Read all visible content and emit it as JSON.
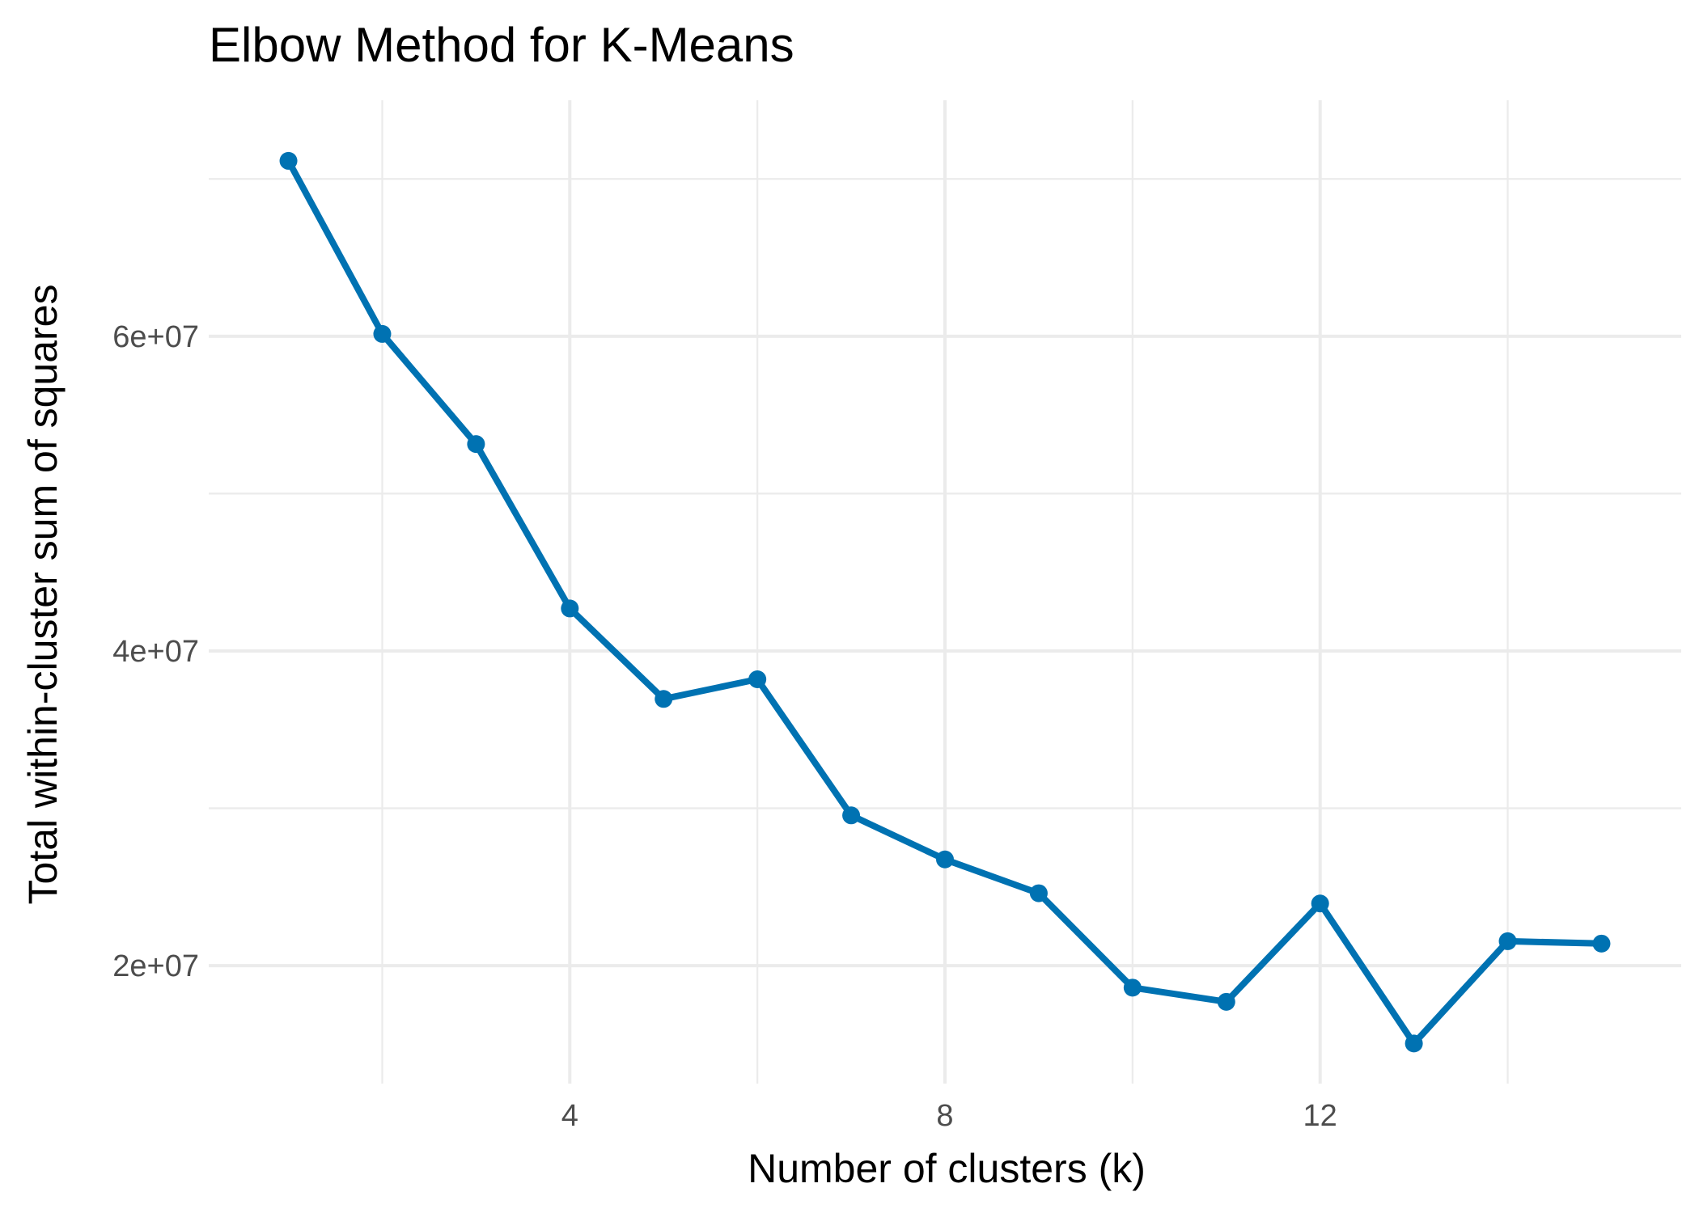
{
  "chart_data": {
    "type": "line",
    "title": "Elbow Method for K-Means",
    "xlabel": "Number of clusters (k)",
    "ylabel": "Total within-cluster sum of squares",
    "x": [
      1,
      2,
      3,
      4,
      5,
      6,
      7,
      8,
      9,
      10,
      11,
      12,
      13,
      14,
      15
    ],
    "series": [
      {
        "name": "",
        "values": [
          71150000,
          60150000,
          53150000,
          42700000,
          36950000,
          38200000,
          29550000,
          26750000,
          24600000,
          18600000,
          17700000,
          23950000,
          15050000,
          21550000,
          21400000
        ]
      }
    ],
    "xlim": [
      0.15,
      15.85
    ],
    "ylim": [
      12500000,
      75000000
    ],
    "x_ticks": [
      4,
      8,
      12
    ],
    "x_tick_labels": [
      "4",
      "8",
      "12"
    ],
    "y_ticks": [
      20000000,
      40000000,
      60000000
    ],
    "y_tick_labels": [
      "2e+07",
      "4e+07",
      "6e+07"
    ],
    "grid": true,
    "legend": "none",
    "colors": {
      "line": "#0072B2",
      "grid": "#ebebeb",
      "tick_text": "#4d4d4d",
      "text": "#000000"
    }
  }
}
